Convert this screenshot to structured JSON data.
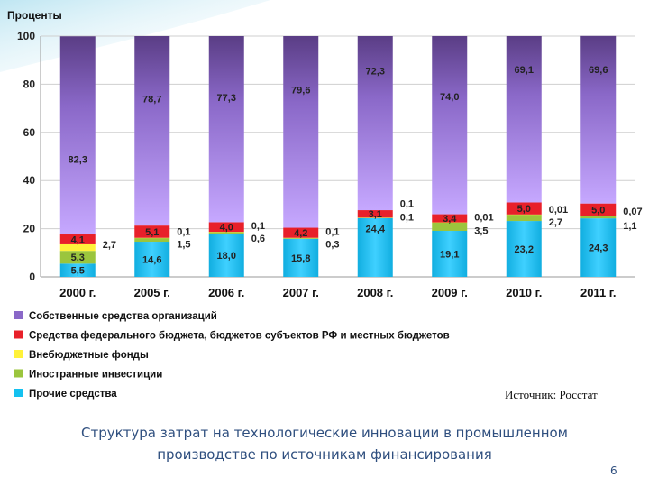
{
  "chart_data": {
    "type": "bar",
    "stacked": true,
    "ylabel": "Проценты",
    "ylim": [
      0,
      100
    ],
    "yticks": [
      0,
      20,
      40,
      60,
      80,
      100
    ],
    "categories": [
      "2000 г.",
      "2005 г.",
      "2006 г.",
      "2007 г.",
      "2008 г.",
      "2009 г.",
      "2010 г.",
      "2011 г."
    ],
    "series": [
      {
        "name": "Прочие средства",
        "color": "#14c1f0",
        "values": [
          5.5,
          14.6,
          18.0,
          15.8,
          24.4,
          19.1,
          23.2,
          24.3
        ]
      },
      {
        "name": "Иностранные инвестиции",
        "color": "#9bc53d",
        "values": [
          5.3,
          1.5,
          0.6,
          0.3,
          0.1,
          3.5,
          2.7,
          1.1
        ]
      },
      {
        "name": "Внебюджетные фонды",
        "color": "#fff23a",
        "values": [
          2.7,
          0.1,
          0.1,
          0.1,
          0.1,
          0.01,
          0.01,
          0.07
        ]
      },
      {
        "name": "Средства федерального бюджета, бюджетов субъектов РФ и местных бюджетов",
        "color": "#e8202a",
        "values": [
          4.1,
          5.1,
          4.0,
          4.2,
          3.1,
          3.4,
          5.0,
          5.0
        ]
      },
      {
        "name": "Собственные средства организаций",
        "color": "#a98bea",
        "values": [
          82.3,
          78.7,
          77.3,
          79.6,
          72.3,
          74.0,
          69.1,
          69.6
        ]
      }
    ],
    "labels": [
      [
        {
          "t": "5,5",
          "s": 0,
          "side": "in"
        },
        {
          "t": "5,3",
          "s": 1,
          "side": "in"
        },
        {
          "t": "2,7",
          "s": 2,
          "side": "out",
          "dy": 0
        },
        {
          "t": "4,1",
          "s": 3,
          "side": "in"
        },
        {
          "t": "82,3",
          "s": 4,
          "side": "in",
          "dyv": 0.38
        }
      ],
      [
        {
          "t": "14,6",
          "s": 0,
          "side": "in"
        },
        {
          "t": "5,1",
          "s": 3,
          "side": "in"
        },
        {
          "t": "0,1",
          "s": 2,
          "side": "out",
          "dy": -7
        },
        {
          "t": "1,5",
          "s": 1,
          "side": "out",
          "dy": 7
        },
        {
          "t": "78,7",
          "s": 4,
          "side": "in",
          "dyv": 0.67
        }
      ],
      [
        {
          "t": "18,0",
          "s": 0,
          "side": "in"
        },
        {
          "t": "4,0",
          "s": 3,
          "side": "in"
        },
        {
          "t": "0,1",
          "s": 2,
          "side": "out",
          "dy": -7
        },
        {
          "t": "0,6",
          "s": 1,
          "side": "out",
          "dy": 7
        },
        {
          "t": "77,3",
          "s": 4,
          "side": "in",
          "dyv": 0.67
        }
      ],
      [
        {
          "t": "15,8",
          "s": 0,
          "side": "in"
        },
        {
          "t": "4,2",
          "s": 3,
          "side": "in"
        },
        {
          "t": "0,1",
          "s": 2,
          "side": "out",
          "dy": -7
        },
        {
          "t": "0,3",
          "s": 1,
          "side": "out",
          "dy": 7
        },
        {
          "t": "79,6",
          "s": 4,
          "side": "in",
          "dyv": 0.72
        }
      ],
      [
        {
          "t": "24,4",
          "s": 0,
          "side": "in",
          "dyv": 0.82
        },
        {
          "t": "3,1",
          "s": 3,
          "side": "in"
        },
        {
          "t": "0,1",
          "s": 2,
          "side": "out",
          "dy": -16
        },
        {
          "t": "0,1",
          "s": 1,
          "side": "out",
          "dy": -1
        },
        {
          "t": "72,3",
          "s": 4,
          "side": "in",
          "dyv": 0.8
        }
      ],
      [
        {
          "t": "19,1",
          "s": 0,
          "side": "in"
        },
        {
          "t": "3,4",
          "s": 3,
          "side": "in"
        },
        {
          "t": "0,01",
          "s": 2,
          "side": "out",
          "dy": -6
        },
        {
          "t": "3,5",
          "s": 1,
          "side": "out",
          "dy": 9
        },
        {
          "t": "74,0",
          "s": 4,
          "side": "in",
          "dyv": 0.66
        }
      ],
      [
        {
          "t": "23,2",
          "s": 0,
          "side": "in"
        },
        {
          "t": "5,0",
          "s": 3,
          "side": "in"
        },
        {
          "t": "0,01",
          "s": 2,
          "side": "out",
          "dy": -6
        },
        {
          "t": "2,7",
          "s": 1,
          "side": "out",
          "dy": 8
        },
        {
          "t": "69,1",
          "s": 4,
          "side": "in",
          "dyv": 0.8
        }
      ],
      [
        {
          "t": "24,3",
          "s": 0,
          "side": "in"
        },
        {
          "t": "5,0",
          "s": 3,
          "side": "in"
        },
        {
          "t": "0,07",
          "s": 2,
          "side": "out",
          "dy": -5
        },
        {
          "t": "1,1",
          "s": 1,
          "side": "out",
          "dy": 11
        },
        {
          "t": "69,6",
          "s": 4,
          "side": "in",
          "dyv": 0.8
        }
      ]
    ],
    "legend_order": [
      4,
      3,
      2,
      1,
      0
    ],
    "legend_placement": "bottom-left"
  },
  "source": "Источник: Росстат",
  "caption": "Структура затрат на технологические инновации в промышленном производстве по источникам финансирования",
  "page_number": "6"
}
